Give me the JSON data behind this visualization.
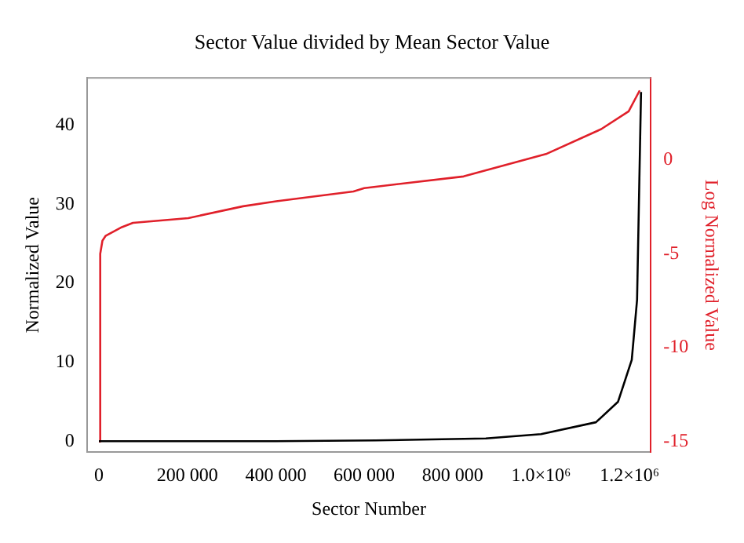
{
  "chart_data": {
    "type": "line",
    "title": "Sector Value divided by Mean Sector Value",
    "xlabel": "Sector Number",
    "ylabel": "Normalized Value",
    "y2label": "Log Normalized Value",
    "xlim": [
      -27000,
      1248000
    ],
    "ylim": [
      -1.4,
      46
    ],
    "y2lim": [
      -15.57,
      4.37
    ],
    "xticks": [
      0,
      {
        "value": 200000,
        "label": "200 000"
      },
      {
        "value": 400000,
        "label": "400 000"
      },
      {
        "value": 600000,
        "label": "600 000"
      },
      {
        "value": 800000,
        "label": "800 000"
      },
      {
        "value": 1000000,
        "label": "1.0×10⁶"
      },
      {
        "value": 1200000,
        "label": "1.2×10⁶"
      }
    ],
    "yticks": [
      0,
      10,
      20,
      30,
      40
    ],
    "y2ticks": [
      -15,
      -10,
      -5,
      0
    ],
    "series": [
      {
        "color": "#000000",
        "x": [
          0,
          200000,
          400000,
          626000,
          875000,
          1000000,
          1124000,
          1174000,
          1205000,
          1217000,
          1226000
        ],
        "values": [
          0,
          0,
          0,
          0.1,
          0.36,
          0.9,
          2.4,
          5,
          10.3,
          17.9,
          44.2
        ]
      },
      {
        "color": "#e0202a",
        "axis": "y2",
        "x": [
          0,
          3000,
          8000,
          15000,
          52000,
          77000,
          202000,
          326000,
          401000,
          575700,
          600000,
          824700,
          1011000,
          1136000,
          1198000,
          1223000
        ],
        "values": [
          -15,
          -5,
          -4.3,
          -4.05,
          -3.58,
          -3.35,
          -3.1,
          -2.47,
          -2.2,
          -1.68,
          -1.5,
          -0.88,
          0.31,
          1.64,
          2.59,
          3.7
        ]
      }
    ],
    "grid": false,
    "legend": false,
    "marker": "none",
    "line_style": "solid"
  }
}
